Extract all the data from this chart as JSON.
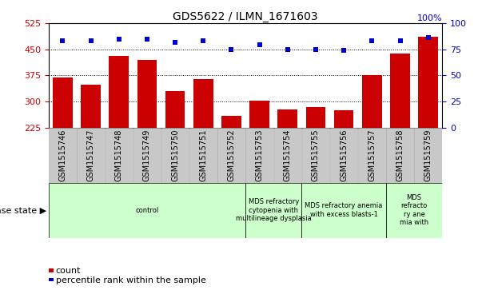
{
  "title": "GDS5622 / ILMN_1671603",
  "samples": [
    "GSM1515746",
    "GSM1515747",
    "GSM1515748",
    "GSM1515749",
    "GSM1515750",
    "GSM1515751",
    "GSM1515752",
    "GSM1515753",
    "GSM1515754",
    "GSM1515755",
    "GSM1515756",
    "GSM1515757",
    "GSM1515758",
    "GSM1515759"
  ],
  "counts": [
    370,
    348,
    430,
    420,
    330,
    365,
    258,
    302,
    278,
    285,
    276,
    375,
    438,
    487
  ],
  "percentile_ranks": [
    83,
    83,
    85,
    85,
    82,
    83,
    75,
    79,
    75,
    75,
    74,
    83,
    83,
    86
  ],
  "ylim_left": [
    225,
    525
  ],
  "ylim_right": [
    0,
    100
  ],
  "yticks_left": [
    225,
    300,
    375,
    450,
    525
  ],
  "yticks_right": [
    0,
    25,
    50,
    75,
    100
  ],
  "hlines": [
    300,
    375,
    450
  ],
  "bar_color": "#cc0000",
  "dot_color": "#0000cc",
  "background_color": "#ffffff",
  "tick_area_color": "#c8c8c8",
  "disease_groups": [
    {
      "label": "control",
      "start": 0,
      "end": 7
    },
    {
      "label": "MDS refractory\ncytopenia with\nmultilineage dysplasia",
      "start": 7,
      "end": 9
    },
    {
      "label": "MDS refractory anemia\nwith excess blasts-1",
      "start": 9,
      "end": 12
    },
    {
      "label": "MDS\nrefracto\nry ane\nmia with",
      "start": 12,
      "end": 14
    }
  ],
  "disease_group_color": "#ccffcc",
  "disease_state_label": "disease state",
  "legend_count_label": "count",
  "legend_pct_label": "percentile rank within the sample",
  "title_fontsize": 10,
  "axis_fontsize": 8,
  "label_fontsize": 7,
  "group_label_fontsize": 6
}
